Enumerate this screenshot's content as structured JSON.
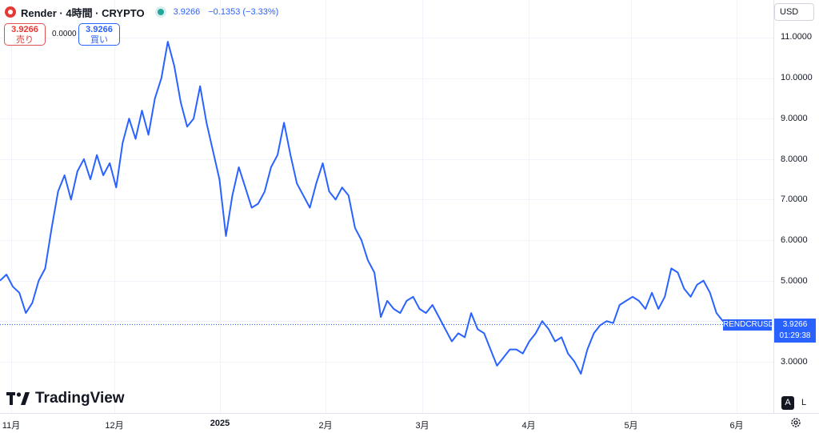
{
  "header": {
    "title": "Render · 4時間 · CRYPTO",
    "price": "3.9266",
    "change": "−0.1353 (−3.33%)"
  },
  "trade": {
    "sell_price": "3.9266",
    "sell_label": "売り",
    "spread": "0.0000",
    "buy_price": "3.9266",
    "buy_label": "買い"
  },
  "currency": "USD",
  "last": {
    "symbol": "RENDCRUSD",
    "price": "3.9266",
    "countdown": "01:29:38"
  },
  "brand": "TradingView",
  "buttons": {
    "auto": "A",
    "log": "L"
  },
  "colors": {
    "line": "#2962ff",
    "grid": "#f0f3fa",
    "up": "#26a69a",
    "sell": "#e53935"
  },
  "chart_data": {
    "type": "line",
    "series": [
      {
        "values": [
          5.0,
          5.15,
          4.85,
          4.7,
          4.2,
          4.45,
          5.0,
          5.3,
          6.3,
          7.2,
          7.6,
          7.0,
          7.7,
          8.0,
          7.5,
          8.1,
          7.6,
          7.9,
          7.3,
          8.4,
          9.0,
          8.5,
          9.2,
          8.6,
          9.5,
          10.0,
          10.9,
          10.3,
          9.4,
          8.8,
          9.0,
          9.8,
          8.9,
          8.2,
          7.5,
          6.1,
          7.1,
          7.8,
          7.3,
          6.8,
          6.9,
          7.2,
          7.8,
          8.1,
          8.9,
          8.1,
          7.4,
          7.1,
          6.8,
          7.4,
          7.9,
          7.2,
          7.0,
          7.3,
          7.1,
          6.3,
          6.0,
          5.5,
          5.2,
          4.1,
          4.5,
          4.3,
          4.2,
          4.5,
          4.6,
          4.3,
          4.2,
          4.4,
          4.1,
          3.8,
          3.5,
          3.7,
          3.6,
          4.2,
          3.8,
          3.7,
          3.3,
          2.9,
          3.1,
          3.3,
          3.3,
          3.2,
          3.5,
          3.7,
          4.0,
          3.8,
          3.5,
          3.6,
          3.2,
          3.0,
          2.7,
          3.3,
          3.7,
          3.9,
          4.0,
          3.95,
          4.4,
          4.5,
          4.6,
          4.5,
          4.3,
          4.7,
          4.3,
          4.6,
          5.3,
          5.2,
          4.8,
          4.6,
          4.9,
          5.0,
          4.7,
          4.2,
          4.0,
          3.93,
          3.9266
        ]
      }
    ],
    "x_start": "2024-10-26",
    "x_end": "2025-05-31",
    "x_ticks": [
      "11月",
      "12月",
      "2025",
      "2月",
      "3月",
      "4月",
      "5月",
      "6月"
    ],
    "ylim": [
      2.2,
      11.4
    ],
    "y_ticks": [
      "11.0000",
      "10.0000",
      "9.0000",
      "8.0000",
      "7.0000",
      "6.0000",
      "5.0000",
      "4.0000",
      "3.0000"
    ],
    "last_value": 3.9266,
    "grid": true
  }
}
